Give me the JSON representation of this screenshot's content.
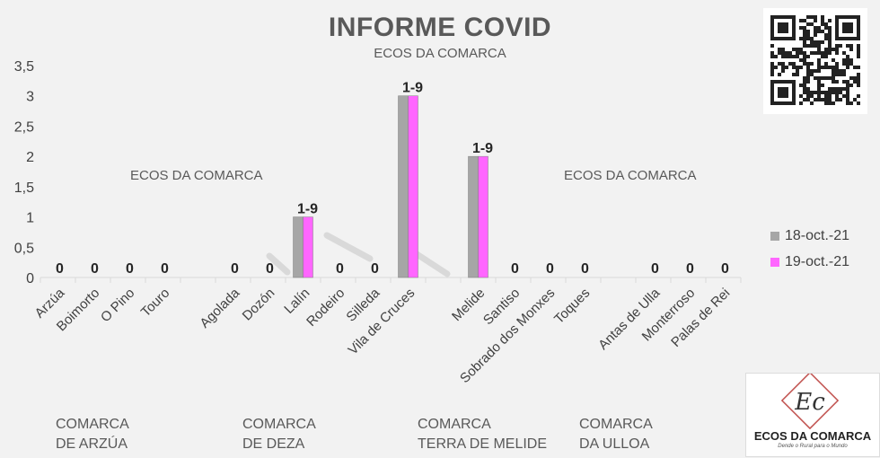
{
  "chart_data": {
    "type": "bar",
    "title": "INFORME COVID",
    "subtitle": "ECOS DA COMARCA",
    "watermark_text": "ECOS DA COMARCA",
    "categories": [
      "Arzúa",
      "Boimorto",
      "O Pino",
      "Touro",
      "",
      "Agolada",
      "Dozón",
      "Lalín",
      "Rodeiro",
      "Silleda",
      "Vila de Cruces",
      "",
      "Melide",
      "Santiso",
      "Sobrado dos Monxes",
      "Toques",
      "",
      "Antas de Ulla",
      "Monterroso",
      "Palas de Rei"
    ],
    "series": [
      {
        "name": "18-oct.-21",
        "color": "#a6a6a6",
        "values": [
          0,
          0,
          0,
          0,
          null,
          0,
          0,
          1,
          0,
          0,
          3,
          null,
          2,
          0,
          0,
          0,
          null,
          0,
          0,
          0
        ]
      },
      {
        "name": "19-oct.-21",
        "color": "#ff66ff",
        "values": [
          0,
          0,
          0,
          0,
          null,
          0,
          0,
          1,
          0,
          0,
          3,
          null,
          2,
          0,
          0,
          0,
          null,
          0,
          0,
          0
        ]
      }
    ],
    "data_labels": [
      "0",
      "0",
      "0",
      "0",
      null,
      "0",
      "0",
      "1-9",
      "0",
      "0",
      "1-9",
      null,
      "1-9",
      "0",
      "0",
      "0",
      null,
      "0",
      "0",
      "0"
    ],
    "yticks": [
      "0",
      "0,5",
      "1",
      "1,5",
      "2",
      "2,5",
      "3",
      "3,5"
    ],
    "ylim": [
      0,
      3.5
    ],
    "grid": false,
    "legend_position": "right",
    "groups": [
      {
        "line1": "COMARCA",
        "line2": "DE ARZÚA"
      },
      {
        "line1": "COMARCA",
        "line2": "DE DEZA"
      },
      {
        "line1": "COMARCA",
        "line2": "TERRA DE MELIDE"
      },
      {
        "line1": "COMARCA",
        "line2": "DA ULLOA"
      }
    ]
  },
  "logo": {
    "name": "ECOS DA COMARCA",
    "tagline": "Dende o Rural para o Mundo",
    "monogram": "Ec"
  }
}
